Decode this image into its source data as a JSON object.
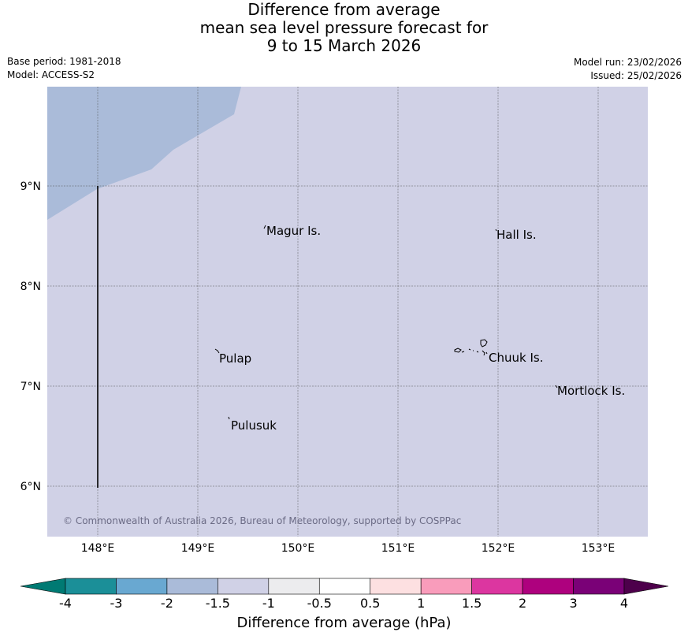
{
  "title": {
    "line1": "Difference from average",
    "line2": "mean sea level pressure forecast for",
    "line3": "9 to 15 March 2026"
  },
  "meta": {
    "base_period": "Base period: 1981-2018",
    "model": "Model: ACCESS-S2",
    "model_run": "Model run: 23/02/2026",
    "issued": "Issued: 25/02/2026"
  },
  "map": {
    "lon_labels": [
      "148°E",
      "149°E",
      "150°E",
      "151°E",
      "152°E",
      "153°E"
    ],
    "lat_labels": [
      "9°N",
      "8°N",
      "7°N",
      "6°N"
    ],
    "places": [
      {
        "name": "Magur Is."
      },
      {
        "name": "Hall Is."
      },
      {
        "name": "Pulap"
      },
      {
        "name": "Chuuk Is."
      },
      {
        "name": "Mortlock Is."
      },
      {
        "name": "Pulusuk"
      }
    ],
    "copyright": "© Commonwealth of Australia 2026, Bureau of Meteorology, supported by COSPPac",
    "fill_colors": {
      "band_minus_2_to_minus_1_5": "#aabbd9",
      "band_minus_1_5_to_minus_1": "#d0d1e6"
    }
  },
  "colorbar": {
    "ticks": [
      "-4",
      "-3",
      "-2",
      "-1.5",
      "-1",
      "-0.5",
      "0.5",
      "1",
      "1.5",
      "2",
      "3",
      "4"
    ],
    "colors": [
      "#007a73",
      "#1b8f98",
      "#69a8d1",
      "#aabbd9",
      "#d0d1e6",
      "#ececee",
      "#ffffff",
      "#fde0e1",
      "#f99cbb",
      "#dc36a0",
      "#ae017e",
      "#7a0177",
      "#4d004b"
    ],
    "label": "Difference from average (hPa)"
  }
}
